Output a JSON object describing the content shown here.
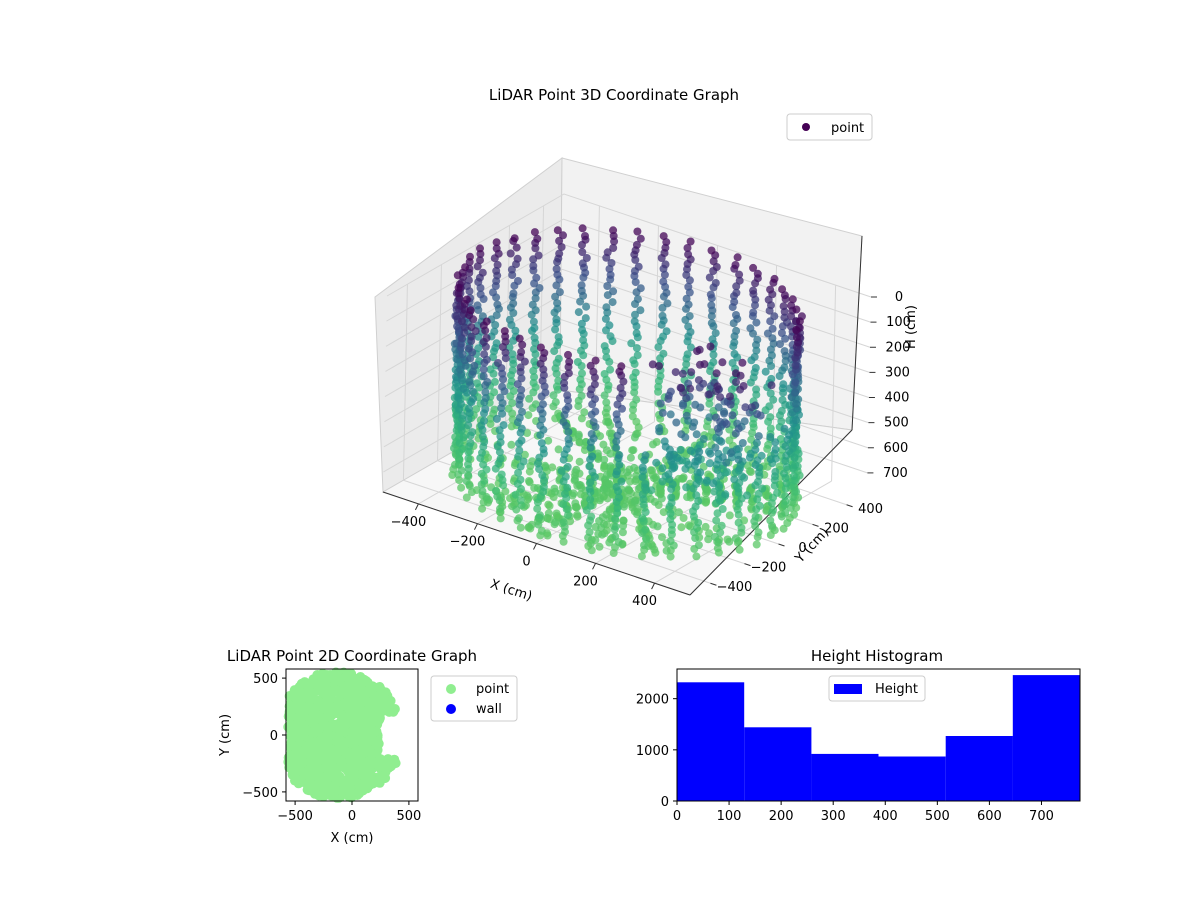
{
  "chart_data": [
    {
      "type": "scatter",
      "title": "LiDAR Point 3D Coordinate Graph",
      "xlabel": "X (cm)",
      "ylabel": "Y (cm)",
      "zlabel": "H (cm)",
      "xlim": [
        -520,
        520
      ],
      "ylim": [
        -520,
        520
      ],
      "zlim": [
        0,
        780
      ],
      "z_inverted": true,
      "x_ticks": [
        -400,
        -200,
        0,
        200,
        400
      ],
      "y_ticks": [
        -400,
        -200,
        0,
        200,
        400
      ],
      "z_ticks": [
        0,
        100,
        200,
        300,
        400,
        500,
        600,
        700
      ],
      "legend": [
        "point"
      ],
      "legend_position": "upper-right",
      "colormap": "viridis",
      "colors": {
        "high": "#440154",
        "mid": "#31688e",
        "low": "#35b779"
      },
      "grid": true,
      "description_values": {
        "cylinder_radius_cm": 500,
        "ring_columns": 40,
        "height_max_cm": 770
      }
    },
    {
      "type": "scatter",
      "title": "LiDAR Point 2D Coordinate Graph",
      "xlabel": "X (cm)",
      "ylabel": "Y (cm)",
      "xlim": [
        -580,
        580
      ],
      "ylim": [
        -580,
        580
      ],
      "x_ticks": [
        -500,
        0,
        500
      ],
      "y_ticks": [
        -500,
        0,
        500
      ],
      "series": [
        {
          "name": "point",
          "color": "#90ee90"
        },
        {
          "name": "wall",
          "color": "#0000ff"
        }
      ],
      "legend_position": "outside-right"
    },
    {
      "type": "bar",
      "title": "Height Histogram",
      "legend": [
        "Height"
      ],
      "legend_position": "upper-center",
      "color": "#0000ff",
      "bin_edges": [
        0,
        129,
        258,
        387,
        516,
        645,
        774
      ],
      "values": [
        2320,
        1440,
        920,
        870,
        1270,
        2460
      ],
      "xlim": [
        0,
        774
      ],
      "ylim": [
        0,
        2580
      ],
      "x_ticks": [
        0,
        100,
        200,
        300,
        400,
        500,
        600,
        700
      ],
      "y_ticks": [
        0,
        1000,
        2000
      ]
    }
  ]
}
